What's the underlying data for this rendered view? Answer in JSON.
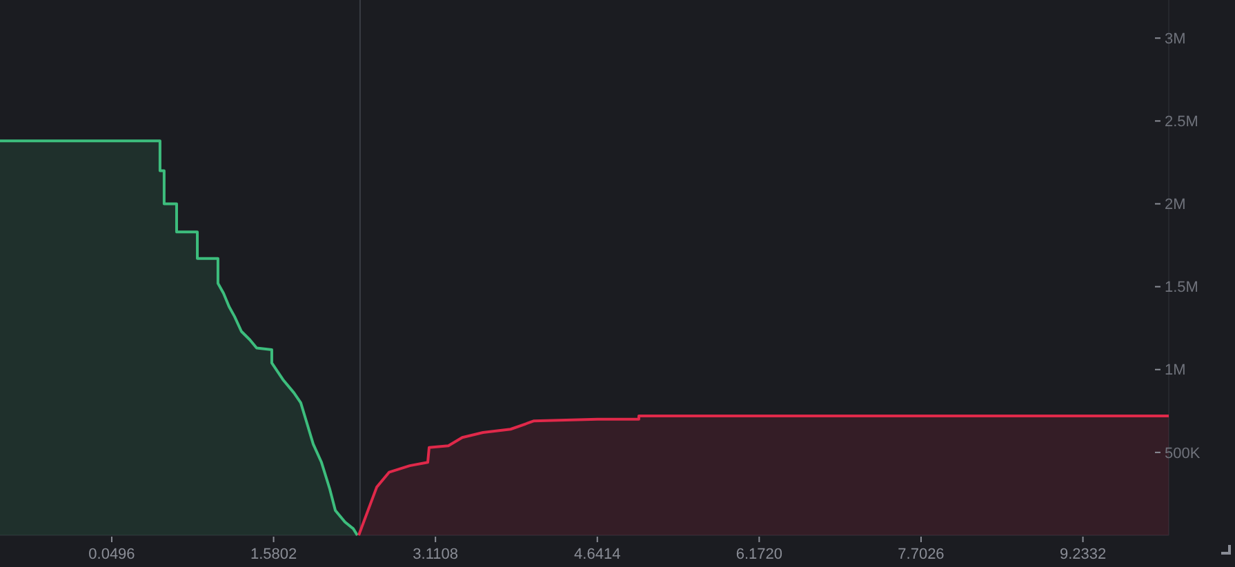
{
  "chart_data": {
    "type": "area",
    "xlim": [
      -1.007,
      10.045
    ],
    "ylim": [
      0,
      3230000
    ],
    "xticks": [
      0.0496,
      1.5802,
      3.1108,
      4.6414,
      {
        "value": 6.172,
        "label": "6.1720"
      },
      7.7026,
      9.2332
    ],
    "yticks": [
      {
        "value": 500000,
        "label": "500K"
      },
      {
        "value": 1000000,
        "label": "1M"
      },
      {
        "value": 1500000,
        "label": "1.5M"
      },
      {
        "value": 2000000,
        "label": "2M"
      },
      {
        "value": 2500000,
        "label": "2.5M"
      },
      {
        "value": 3000000,
        "label": "3M"
      }
    ],
    "grid": false,
    "ref_lines": [
      {
        "axis": "x",
        "value": 2.398,
        "color": "#3a3c44"
      }
    ],
    "series": [
      {
        "color": "#3dbd7d",
        "x": [
          -1.007,
          0.506,
          0.506,
          0.545,
          0.545,
          0.663,
          0.663,
          0.859,
          0.859,
          1.054,
          1.054,
          1.107,
          1.159,
          1.211,
          1.276,
          1.355,
          1.42,
          1.563,
          1.563,
          1.668,
          1.772,
          1.837,
          1.889,
          1.955,
          2.033,
          2.111,
          2.164,
          2.255,
          2.333,
          2.372
        ],
        "values": [
          2380000,
          2380000,
          2200000,
          2200000,
          2000000,
          2000000,
          1830000,
          1830000,
          1670000,
          1670000,
          1520000,
          1460000,
          1380000,
          1320000,
          1230000,
          1180000,
          1130000,
          1120000,
          1040000,
          940000,
          860000,
          800000,
          690000,
          550000,
          440000,
          280000,
          150000,
          80000,
          40000,
          0
        ]
      },
      {
        "color": "#e0294a",
        "x": [
          2.385,
          2.555,
          2.672,
          2.868,
          3.038,
          3.051,
          3.233,
          3.364,
          3.56,
          3.821,
          4.043,
          4.643,
          5.034,
          5.034,
          10.045
        ],
        "values": [
          0,
          290000,
          380000,
          420000,
          440000,
          530000,
          540000,
          590000,
          620000,
          640000,
          690000,
          700000,
          700000,
          720000,
          720000
        ]
      }
    ]
  }
}
